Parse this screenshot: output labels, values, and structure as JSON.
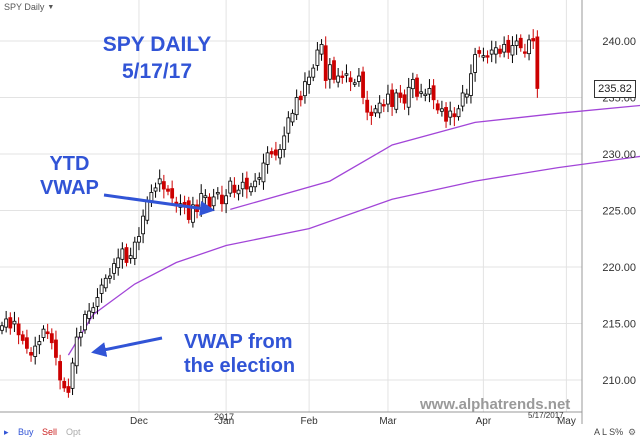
{
  "header": {
    "symbol_label": "SPY Daily",
    "dropdown_icon": "caret-down-icon"
  },
  "chart_data": {
    "type": "candlestick",
    "title": "SPY DAILY",
    "subtitle": "5/17/17",
    "watermark": "www.alphatrends.net",
    "price_label": "235.82",
    "date_label": "5/17/2017",
    "x_tick_labels": [
      "Dec",
      "Jan",
      "Feb",
      "Mar",
      "Apr",
      "May"
    ],
    "x_year_label": "2017",
    "y_tick_labels": [
      "240.00",
      "235.00",
      "230.00",
      "225.00",
      "220.00",
      "215.00",
      "210.00"
    ],
    "ylim": [
      207.5,
      244.5
    ],
    "closes": [
      214.8,
      215.4,
      214.6,
      215.2,
      214.0,
      213.5,
      212.8,
      212.2,
      213.0,
      213.4,
      214.5,
      214.1,
      213.3,
      212.0,
      210.0,
      209.3,
      208.9,
      211.5,
      213.8,
      214.2,
      215.8,
      216.1,
      216.4,
      217.3,
      218.4,
      219.0,
      219.2,
      220.3,
      220.8,
      221.6,
      220.4,
      221.0,
      222.2,
      222.7,
      224.5,
      225.9,
      226.6,
      227.0,
      227.8,
      226.9,
      226.7,
      226.1,
      225.4,
      225.6,
      225.5,
      224.2,
      225.5,
      224.9,
      226.5,
      226.3,
      225.3,
      226.2,
      226.6,
      225.6,
      226.3,
      227.6,
      226.6,
      226.8,
      227.5,
      226.9,
      227.1,
      227.6,
      227.9,
      229.2,
      230.1,
      230.0,
      229.9,
      230.4,
      231.6,
      233.2,
      233.6,
      235.0,
      234.8,
      236.4,
      236.8,
      237.6,
      239.2,
      239.7,
      236.5,
      237.9,
      236.6,
      236.9,
      236.8,
      237.1,
      236.4,
      236.3,
      236.9,
      235.0,
      233.7,
      233.4,
      234.0,
      234.5,
      234.3,
      235.3,
      234.2,
      235.4,
      235.0,
      234.5,
      235.9,
      236.6,
      235.1,
      235.5,
      235.3,
      235.8,
      234.8,
      233.9,
      234.0,
      232.9,
      233.8,
      233.3,
      234.0,
      235.4,
      235.3,
      237.1,
      238.8,
      238.9,
      238.7,
      238.6,
      239.2,
      239.4,
      238.9,
      239.7,
      239.0,
      239.6,
      240.0,
      239.4,
      239.0,
      240.1,
      240.0,
      235.8
    ],
    "series": [
      {
        "name": "YTD VWAP",
        "points": [
          [
            1,
            225.1
          ],
          [
            25,
            227.6
          ],
          [
            40,
            230.8
          ],
          [
            60,
            232.8
          ],
          [
            80,
            233.6
          ],
          [
            100,
            234.3
          ]
        ]
      },
      {
        "name": "VWAP from the election",
        "points": [
          [
            -38,
            212.2
          ],
          [
            -32,
            215.8
          ],
          [
            -22,
            218.5
          ],
          [
            -12,
            220.4
          ],
          [
            0,
            221.9
          ],
          [
            20,
            223.4
          ],
          [
            40,
            226.0
          ],
          [
            60,
            227.6
          ],
          [
            80,
            228.8
          ],
          [
            100,
            229.8
          ]
        ]
      }
    ],
    "annotations": [
      "YTD\nVWAP",
      "VWAP from\nthe election"
    ],
    "colors": {
      "up": "#000000",
      "down": "#cc0000",
      "vwap": "#a245d8",
      "annotation": "#3154d6"
    }
  },
  "annotations": {
    "ytd_line1": "YTD",
    "ytd_line2": "VWAP",
    "election_line1": "VWAP from",
    "election_line2": "the election"
  },
  "footer": {
    "buy": "Buy",
    "sell": "Sell",
    "opt": "Opt",
    "right_controls": "A L S%",
    "settings_icon": "gear-icon"
  }
}
